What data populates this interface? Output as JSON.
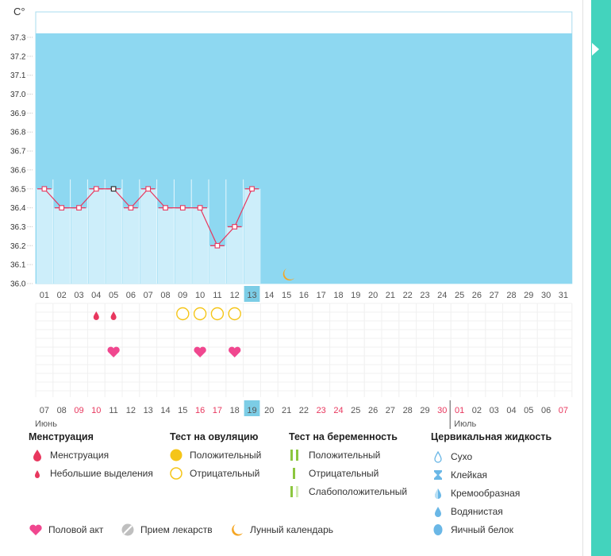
{
  "chart_data": {
    "type": "line",
    "unit_label": "C°",
    "ylim": [
      36.0,
      37.35
    ],
    "y_ticks": [
      "36.0",
      "36.1",
      "36.2",
      "36.3",
      "36.4",
      "36.5",
      "36.6",
      "36.7",
      "36.8",
      "36.9",
      "37.0",
      "37.1",
      "37.2",
      "37.3"
    ],
    "days": [
      "01",
      "02",
      "03",
      "04",
      "05",
      "06",
      "07",
      "08",
      "09",
      "10",
      "11",
      "12",
      "13",
      "14",
      "15",
      "16",
      "17",
      "18",
      "19",
      "20",
      "21",
      "22",
      "23",
      "24",
      "25",
      "26",
      "27",
      "28",
      "29",
      "30",
      "31"
    ],
    "temperatures": [
      36.5,
      36.4,
      36.4,
      36.5,
      36.5,
      36.4,
      36.5,
      36.4,
      36.4,
      36.4,
      36.2,
      36.3,
      36.5
    ],
    "selected_day_index": 4,
    "current_day_index": 12,
    "dates": [
      "07",
      "08",
      "09",
      "10",
      "11",
      "12",
      "13",
      "14",
      "15",
      "16",
      "17",
      "18",
      "19",
      "20",
      "21",
      "22",
      "23",
      "24",
      "25",
      "26",
      "27",
      "28",
      "29",
      "30",
      "01",
      "02",
      "03",
      "04",
      "05",
      "06",
      "07"
    ],
    "date_colors": [
      "#555",
      "#555",
      "#e8375e",
      "#e8375e",
      "#555",
      "#555",
      "#555",
      "#555",
      "#555",
      "#e8375e",
      "#e8375e",
      "#555",
      "#555",
      "#555",
      "#555",
      "#555",
      "#e8375e",
      "#e8375e",
      "#555",
      "#555",
      "#555",
      "#555",
      "#555",
      "#e8375e",
      "#e8375e",
      "#555",
      "#555",
      "#555",
      "#555",
      "#555",
      "#e8375e"
    ],
    "month_start": "Июнь",
    "month_next": "Июль",
    "month_next_index": 24,
    "markers": {
      "menstruation_spotting_days": [
        3,
        4
      ],
      "ovulation_negative_days": [
        8,
        9,
        10,
        11
      ],
      "intercourse_days": [
        4,
        9,
        11
      ],
      "moon_days": [
        14
      ]
    }
  },
  "colors": {
    "plot_bg": "#8ed8f1",
    "bar_fill": "#cdeefa",
    "line": "#e8375e",
    "current_day": "#7ccde6",
    "grid": "#f0f0f0",
    "menstruation": "#e8375e",
    "ovulation": "#f5c518",
    "heart": "#f0478f",
    "moon": "#f5a623",
    "pregnancy": "#8cc63f",
    "cervical": "#6ab7e6"
  },
  "legend": {
    "menstruation": {
      "title": "Менструация",
      "items": [
        "Менструация",
        "Небольшие выделения"
      ]
    },
    "ovulation": {
      "title": "Тест на овуляцию",
      "items": [
        "Положительный",
        "Отрицательный"
      ]
    },
    "pregnancy": {
      "title": "Тест на беременность",
      "items": [
        "Положительный",
        "Отрицательный",
        "Слабоположительный"
      ]
    },
    "cervical": {
      "title": "Цервикальная жидкость",
      "items": [
        "Сухо",
        "Клейкая",
        "Кремообразная",
        "Водянистая",
        "Яичный белок"
      ]
    },
    "other": [
      "Половой акт",
      "Прием лекарств",
      "Лунный календарь"
    ]
  }
}
